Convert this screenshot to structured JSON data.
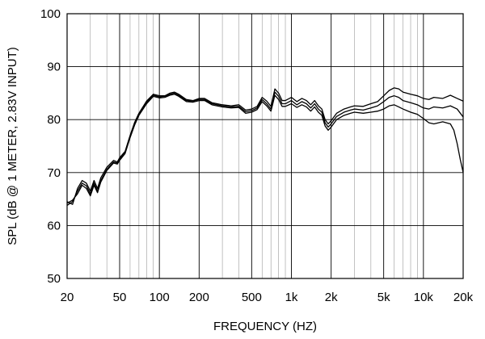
{
  "chart_data": {
    "type": "line",
    "title": "",
    "xlabel": "FREQUENCY (HZ)",
    "ylabel": "SPL (dB @ 1 METER, 2.83V INPUT)",
    "x_scale": "log",
    "xlim": [
      20,
      20000
    ],
    "ylim": [
      50,
      100
    ],
    "grid": true,
    "x_major_ticks": [
      20,
      50,
      100,
      200,
      500,
      1000,
      2000,
      5000,
      10000,
      20000
    ],
    "x_tick_labels": [
      "20",
      "50",
      "100",
      "200",
      "500",
      "1k",
      "2k",
      "5k",
      "10k",
      "20k"
    ],
    "y_ticks": [
      50,
      60,
      70,
      80,
      90,
      100
    ],
    "y_tick_labels": [
      "50",
      "60",
      "70",
      "80",
      "90",
      "100"
    ],
    "series": [
      {
        "points": [
          [
            20,
            64.5
          ],
          [
            22,
            64.0
          ],
          [
            24,
            67.0
          ],
          [
            26,
            68.5
          ],
          [
            28,
            68.0
          ],
          [
            30,
            66.5
          ],
          [
            32,
            68.5
          ],
          [
            34,
            67.0
          ],
          [
            36,
            69.0
          ],
          [
            40,
            71.0
          ],
          [
            45,
            72.3
          ],
          [
            48,
            72.0
          ],
          [
            50,
            72.8
          ],
          [
            55,
            74.0
          ],
          [
            60,
            77.0
          ],
          [
            65,
            79.5
          ],
          [
            70,
            81.2
          ],
          [
            80,
            83.5
          ],
          [
            90,
            84.8
          ],
          [
            100,
            84.5
          ],
          [
            110,
            84.5
          ],
          [
            120,
            85.0
          ],
          [
            130,
            85.2
          ],
          [
            140,
            84.8
          ],
          [
            160,
            83.8
          ],
          [
            180,
            83.6
          ],
          [
            200,
            84.0
          ],
          [
            220,
            84.0
          ],
          [
            250,
            83.2
          ],
          [
            300,
            82.8
          ],
          [
            350,
            82.6
          ],
          [
            400,
            82.8
          ],
          [
            450,
            81.8
          ],
          [
            500,
            82.0
          ],
          [
            550,
            82.5
          ],
          [
            600,
            84.2
          ],
          [
            650,
            83.5
          ],
          [
            700,
            82.5
          ],
          [
            750,
            85.8
          ],
          [
            800,
            85.0
          ],
          [
            850,
            83.6
          ],
          [
            900,
            83.6
          ],
          [
            1000,
            84.2
          ],
          [
            1100,
            83.4
          ],
          [
            1200,
            84.0
          ],
          [
            1300,
            83.6
          ],
          [
            1400,
            82.8
          ],
          [
            1500,
            83.6
          ],
          [
            1600,
            82.6
          ],
          [
            1700,
            82.0
          ],
          [
            1800,
            80.0
          ],
          [
            1900,
            79.2
          ],
          [
            2000,
            79.8
          ],
          [
            2200,
            81.2
          ],
          [
            2500,
            82.0
          ],
          [
            2800,
            82.4
          ],
          [
            3000,
            82.6
          ],
          [
            3500,
            82.5
          ],
          [
            4000,
            83.0
          ],
          [
            4500,
            83.4
          ],
          [
            5000,
            84.5
          ],
          [
            5500,
            85.5
          ],
          [
            6000,
            86.0
          ],
          [
            6500,
            85.8
          ],
          [
            7000,
            85.2
          ],
          [
            8000,
            84.8
          ],
          [
            9000,
            84.5
          ],
          [
            10000,
            84.0
          ],
          [
            11000,
            83.8
          ],
          [
            12000,
            84.2
          ],
          [
            14000,
            84.0
          ],
          [
            16000,
            84.6
          ],
          [
            18000,
            84.0
          ],
          [
            20000,
            83.5
          ]
        ]
      },
      {
        "points": [
          [
            20,
            63.8
          ],
          [
            22,
            64.5
          ],
          [
            24,
            66.5
          ],
          [
            26,
            68.0
          ],
          [
            28,
            67.5
          ],
          [
            30,
            66.0
          ],
          [
            32,
            68.0
          ],
          [
            34,
            66.5
          ],
          [
            36,
            68.5
          ],
          [
            40,
            70.6
          ],
          [
            45,
            72.0
          ],
          [
            48,
            71.8
          ],
          [
            50,
            72.5
          ],
          [
            55,
            73.8
          ],
          [
            60,
            76.8
          ],
          [
            65,
            79.3
          ],
          [
            70,
            81.0
          ],
          [
            80,
            83.3
          ],
          [
            90,
            84.6
          ],
          [
            100,
            84.3
          ],
          [
            110,
            84.4
          ],
          [
            120,
            84.8
          ],
          [
            130,
            85.0
          ],
          [
            140,
            84.6
          ],
          [
            160,
            83.6
          ],
          [
            180,
            83.5
          ],
          [
            200,
            83.8
          ],
          [
            220,
            83.8
          ],
          [
            250,
            83.0
          ],
          [
            300,
            82.6
          ],
          [
            350,
            82.4
          ],
          [
            400,
            82.5
          ],
          [
            450,
            81.5
          ],
          [
            500,
            81.7
          ],
          [
            550,
            82.2
          ],
          [
            600,
            83.8
          ],
          [
            650,
            83.0
          ],
          [
            700,
            82.0
          ],
          [
            750,
            85.2
          ],
          [
            800,
            84.4
          ],
          [
            850,
            83.0
          ],
          [
            900,
            83.0
          ],
          [
            1000,
            83.6
          ],
          [
            1100,
            82.8
          ],
          [
            1200,
            83.4
          ],
          [
            1300,
            83.0
          ],
          [
            1400,
            82.2
          ],
          [
            1500,
            83.0
          ],
          [
            1600,
            82.0
          ],
          [
            1700,
            81.4
          ],
          [
            1800,
            79.4
          ],
          [
            1900,
            78.6
          ],
          [
            2000,
            79.2
          ],
          [
            2200,
            80.6
          ],
          [
            2500,
            81.4
          ],
          [
            2800,
            81.8
          ],
          [
            3000,
            82.0
          ],
          [
            3500,
            81.8
          ],
          [
            4000,
            82.2
          ],
          [
            4500,
            82.6
          ],
          [
            5000,
            83.4
          ],
          [
            5500,
            84.2
          ],
          [
            6000,
            84.5
          ],
          [
            6500,
            84.2
          ],
          [
            7000,
            83.6
          ],
          [
            8000,
            83.2
          ],
          [
            9000,
            82.8
          ],
          [
            10000,
            82.2
          ],
          [
            11000,
            82.0
          ],
          [
            12000,
            82.4
          ],
          [
            14000,
            82.2
          ],
          [
            16000,
            82.6
          ],
          [
            18000,
            82.0
          ],
          [
            20000,
            80.5
          ]
        ]
      },
      {
        "points": [
          [
            20,
            64.2
          ],
          [
            22,
            64.8
          ],
          [
            24,
            66.0
          ],
          [
            26,
            67.6
          ],
          [
            28,
            67.0
          ],
          [
            30,
            65.6
          ],
          [
            32,
            67.6
          ],
          [
            34,
            66.2
          ],
          [
            36,
            68.2
          ],
          [
            40,
            70.4
          ],
          [
            45,
            71.8
          ],
          [
            48,
            71.6
          ],
          [
            50,
            72.3
          ],
          [
            55,
            73.6
          ],
          [
            60,
            76.6
          ],
          [
            65,
            79.0
          ],
          [
            70,
            80.8
          ],
          [
            80,
            83.0
          ],
          [
            90,
            84.4
          ],
          [
            100,
            84.1
          ],
          [
            110,
            84.2
          ],
          [
            120,
            84.6
          ],
          [
            130,
            84.8
          ],
          [
            140,
            84.4
          ],
          [
            160,
            83.4
          ],
          [
            180,
            83.3
          ],
          [
            200,
            83.6
          ],
          [
            220,
            83.6
          ],
          [
            250,
            82.8
          ],
          [
            300,
            82.4
          ],
          [
            350,
            82.2
          ],
          [
            400,
            82.3
          ],
          [
            450,
            81.2
          ],
          [
            500,
            81.4
          ],
          [
            550,
            81.9
          ],
          [
            600,
            83.4
          ],
          [
            650,
            82.6
          ],
          [
            700,
            81.6
          ],
          [
            750,
            84.6
          ],
          [
            800,
            83.8
          ],
          [
            850,
            82.5
          ],
          [
            900,
            82.5
          ],
          [
            1000,
            83.0
          ],
          [
            1100,
            82.3
          ],
          [
            1200,
            82.8
          ],
          [
            1300,
            82.4
          ],
          [
            1400,
            81.6
          ],
          [
            1500,
            82.4
          ],
          [
            1600,
            81.4
          ],
          [
            1700,
            80.8
          ],
          [
            1800,
            78.8
          ],
          [
            1900,
            78.0
          ],
          [
            2000,
            78.6
          ],
          [
            2200,
            80.0
          ],
          [
            2500,
            80.8
          ],
          [
            2800,
            81.2
          ],
          [
            3000,
            81.4
          ],
          [
            3500,
            81.2
          ],
          [
            4000,
            81.4
          ],
          [
            4500,
            81.6
          ],
          [
            5000,
            82.0
          ],
          [
            5500,
            82.6
          ],
          [
            6000,
            82.8
          ],
          [
            6500,
            82.4
          ],
          [
            7000,
            82.0
          ],
          [
            8000,
            81.4
          ],
          [
            9000,
            81.0
          ],
          [
            10000,
            80.2
          ],
          [
            11000,
            79.4
          ],
          [
            12000,
            79.2
          ],
          [
            14000,
            79.6
          ],
          [
            16000,
            79.2
          ],
          [
            17000,
            78.0
          ],
          [
            18000,
            75.5
          ],
          [
            19000,
            72.5
          ],
          [
            20000,
            70.0
          ]
        ]
      }
    ]
  }
}
